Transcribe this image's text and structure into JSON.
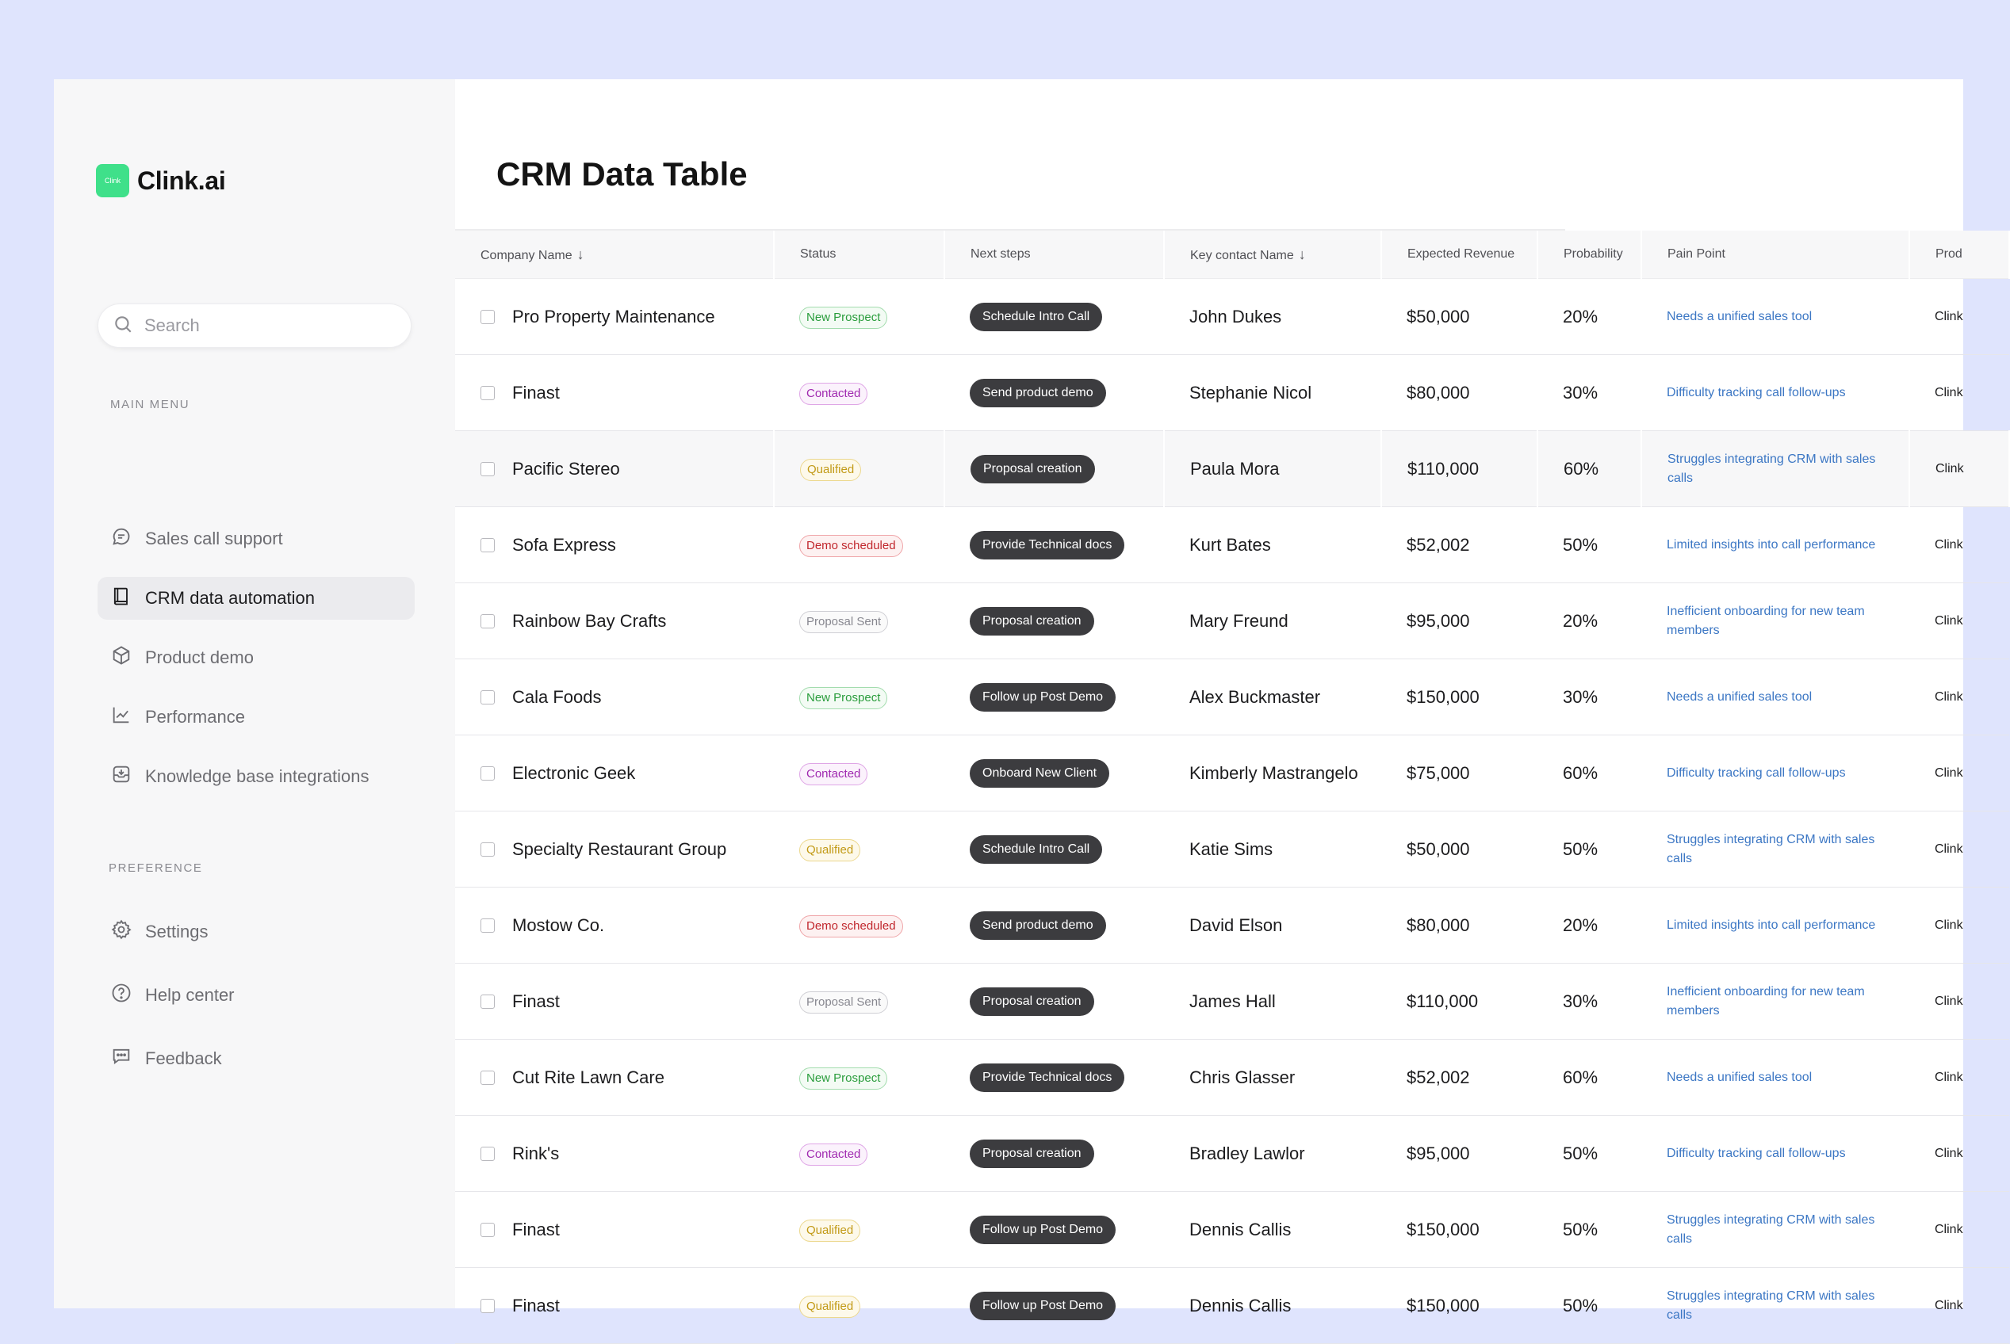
{
  "brand": {
    "name": "Clink.ai",
    "mark_text": "Clink",
    "mark_color": "#3fe08a"
  },
  "search": {
    "placeholder": "Search"
  },
  "sidebar": {
    "main_menu_label": "MAIN MENU",
    "preference_label": "PREFERENCE",
    "main_items": [
      {
        "label": "Sales call support",
        "icon": "chat-bubble-icon"
      },
      {
        "label": "CRM data automation",
        "icon": "book-icon",
        "active": true
      },
      {
        "label": "Product demo",
        "icon": "box-icon"
      },
      {
        "label": "Performance",
        "icon": "line-chart-icon"
      },
      {
        "label": "Knowledge base integrations",
        "icon": "inbox-download-icon"
      }
    ],
    "preference_items": [
      {
        "label": "Settings",
        "icon": "gear-icon"
      },
      {
        "label": "Help center",
        "icon": "question-circle-icon"
      },
      {
        "label": "Feedback",
        "icon": "feedback-icon"
      }
    ]
  },
  "page": {
    "title": "CRM Data Table"
  },
  "table": {
    "columns": [
      "Company Name",
      "Status",
      "Next steps",
      "Key contact Name",
      "Expected Revenue",
      "Probability",
      "Pain Point",
      "Prod"
    ],
    "rows": [
      {
        "company": "Pro Property Maintenance",
        "status": "New Prospect",
        "next": "Schedule Intro Call",
        "contact": "John Dukes",
        "revenue": "$50,000",
        "prob": "20%",
        "pain": "Needs a unified sales tool",
        "prod": "Clink"
      },
      {
        "company": "Finast",
        "status": "Contacted",
        "next": "Send product demo",
        "contact": "Stephanie Nicol",
        "revenue": "$80,000",
        "prob": "30%",
        "pain": "Difficulty tracking call follow-ups",
        "prod": "Clink"
      },
      {
        "company": "Pacific Stereo",
        "status": "Qualified",
        "next": "Proposal creation",
        "contact": "Paula Mora",
        "revenue": "$110,000",
        "prob": "60%",
        "pain": "Struggles integrating CRM with sales calls",
        "prod": "Clink",
        "highlight": true
      },
      {
        "company": "Sofa Express",
        "status": "Demo scheduled",
        "next": "Provide Technical docs",
        "contact": "Kurt Bates",
        "revenue": "$52,002",
        "prob": "50%",
        "pain": "Limited insights into call performance",
        "prod": "Clink"
      },
      {
        "company": "Rainbow Bay Crafts",
        "status": "Proposal Sent",
        "next": "Proposal creation",
        "contact": "Mary Freund",
        "revenue": "$95,000",
        "prob": "20%",
        "pain": "Inefficient onboarding for new team members",
        "prod": "Clink"
      },
      {
        "company": "Cala Foods",
        "status": "New Prospect",
        "next": "Follow up Post Demo",
        "contact": "Alex Buckmaster",
        "revenue": "$150,000",
        "prob": "30%",
        "pain": "Needs a unified sales tool",
        "prod": "Clink"
      },
      {
        "company": "Electronic Geek",
        "status": "Contacted",
        "next": "Onboard New Client",
        "contact": "Kimberly Mastrangelo",
        "revenue": "$75,000",
        "prob": "60%",
        "pain": "Difficulty tracking call follow-ups",
        "prod": "Clink"
      },
      {
        "company": "Specialty Restaurant Group",
        "status": "Qualified",
        "next": "Schedule Intro Call",
        "contact": "Katie Sims",
        "revenue": "$50,000",
        "prob": "50%",
        "pain": "Struggles integrating CRM with sales calls",
        "prod": "Clink"
      },
      {
        "company": "Mostow Co.",
        "status": "Demo scheduled",
        "next": "Send product demo",
        "contact": "David Elson",
        "revenue": "$80,000",
        "prob": "20%",
        "pain": "Limited insights into call performance",
        "prod": "Clink"
      },
      {
        "company": "Finast",
        "status": "Proposal Sent",
        "next": "Proposal creation",
        "contact": "James Hall",
        "revenue": "$110,000",
        "prob": "30%",
        "pain": "Inefficient onboarding for new team members",
        "prod": "Clink"
      },
      {
        "company": "Cut Rite Lawn Care",
        "status": "New Prospect",
        "next": "Provide Technical docs",
        "contact": "Chris Glasser",
        "revenue": "$52,002",
        "prob": "60%",
        "pain": "Needs a unified sales tool",
        "prod": "Clink"
      },
      {
        "company": "Rink's",
        "status": "Contacted",
        "next": "Proposal creation",
        "contact": "Bradley Lawlor",
        "revenue": "$95,000",
        "prob": "50%",
        "pain": "Difficulty tracking call follow-ups",
        "prod": "Clink"
      },
      {
        "company": "Finast",
        "status": "Qualified",
        "next": "Follow up Post Demo",
        "contact": "Dennis Callis",
        "revenue": "$150,000",
        "prob": "50%",
        "pain": "Struggles integrating CRM with sales calls",
        "prod": "Clink"
      },
      {
        "company": "Finast",
        "status": "Qualified",
        "next": "Follow up Post Demo",
        "contact": "Dennis Callis",
        "revenue": "$150,000",
        "prob": "50%",
        "pain": "Struggles integrating CRM with sales calls",
        "prod": "Clink"
      }
    ]
  },
  "colors": {
    "page_bg": "#dfe4fd",
    "sidebar_bg": "#f7f7f8",
    "pill_bg": "#3c3c3f",
    "pain_text": "#3c77c4",
    "new_prospect": "#2a9d3c",
    "contacted": "#a02ab0",
    "qualified": "#c29a16",
    "demo_scheduled": "#c1272d",
    "proposal_sent": "#888890"
  }
}
